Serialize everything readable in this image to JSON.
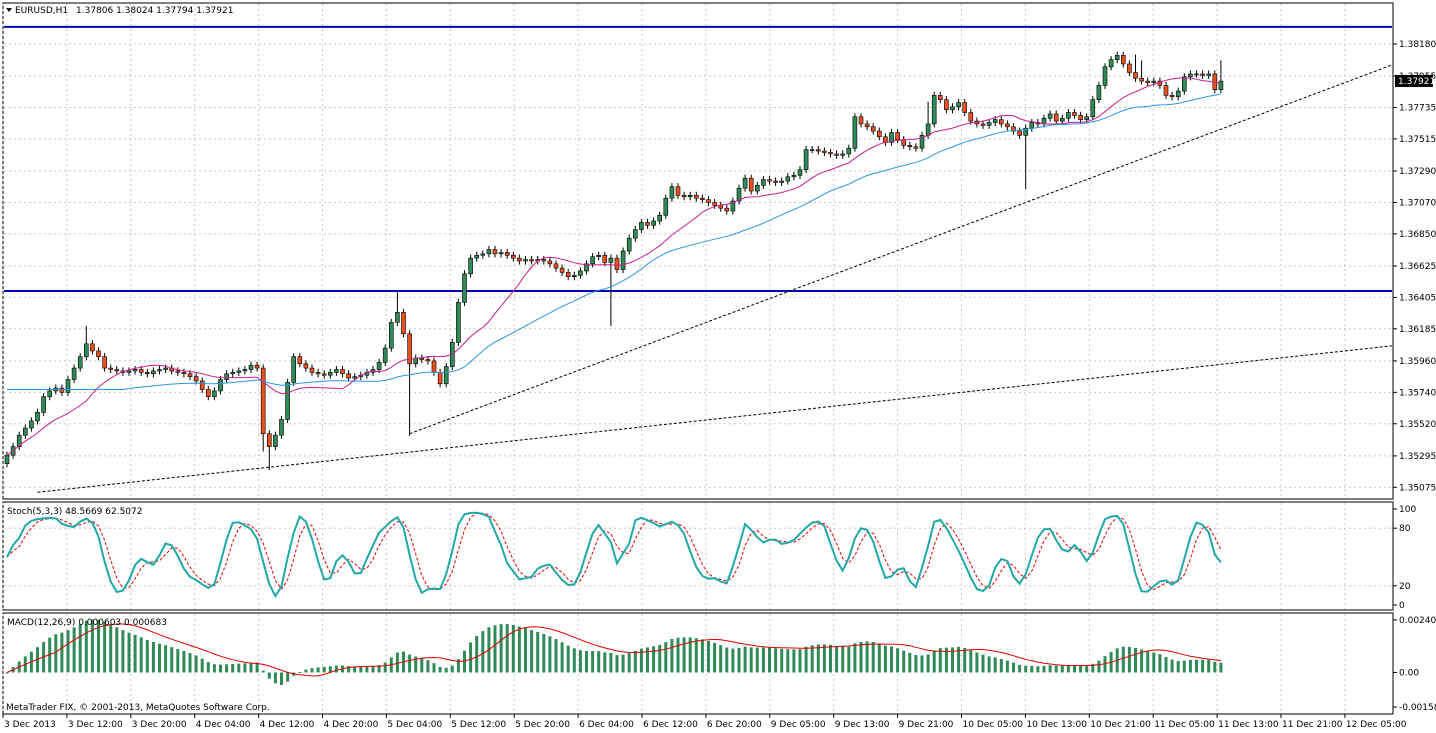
{
  "header": {
    "symbol": "EURUSD,H1",
    "ohlc": "1.37806 1.38024 1.37794 1.37921"
  },
  "watermark": "MetaTrader FIX, © 2001-2013, MetaQuotes Software Corp.",
  "colors": {
    "bull": "#2e8b57",
    "bear": "#e8501e",
    "ma_fast": "#c8208c",
    "ma_slow": "#2f96e0",
    "hline": "#0000b8",
    "stoch_main": "#20a8a8",
    "stoch_signal": "#e00000",
    "macd_hist": "#2e8b57",
    "macd_signal": "#e00000"
  },
  "chart_data": [
    {
      "type": "candlestick",
      "symbol": "EURUSD",
      "timeframe": "H1",
      "last_price": "1.37921",
      "ylim": [
        1.35,
        1.3846
      ],
      "y_ticks": [
        "1.38180",
        "1.37955",
        "1.37735",
        "1.37515",
        "1.37290",
        "1.37070",
        "1.36850",
        "1.36625",
        "1.36405",
        "1.36185",
        "1.35960",
        "1.35740",
        "1.35520",
        "1.35295",
        "1.35075"
      ],
      "y_tick_values": [
        1.3818,
        1.37955,
        1.37735,
        1.37515,
        1.3729,
        1.3707,
        1.3685,
        1.36625,
        1.36405,
        1.36185,
        1.3596,
        1.3574,
        1.3552,
        1.35295,
        1.35075
      ],
      "x_ticks": [
        "3 Dec 2013",
        "3 Dec 12:00",
        "3 Dec 20:00",
        "4 Dec 04:00",
        "4 Dec 12:00",
        "4 Dec 20:00",
        "5 Dec 04:00",
        "5 Dec 12:00",
        "5 Dec 20:00",
        "6 Dec 04:00",
        "6 Dec 12:00",
        "6 Dec 20:00",
        "9 Dec 05:00",
        "9 Dec 13:00",
        "9 Dec 21:00",
        "10 Dec 05:00",
        "10 Dec 13:00",
        "10 Dec 21:00",
        "11 Dec 05:00",
        "11 Dec 13:00",
        "11 Dec 21:00",
        "12 Dec 05:00"
      ],
      "horizontal_lines": [
        1.383,
        1.3645
      ],
      "trendlines": [
        {
          "from": {
            "bar": 5,
            "price": 1.3504
          },
          "to": {
            "bar": 215,
            "price": 1.3601
          }
        },
        {
          "from": {
            "bar": 66,
            "price": 1.3545
          },
          "to": {
            "bar": 215,
            "price": 1.3784
          }
        }
      ],
      "closes": [
        1.353,
        1.3536,
        1.3544,
        1.3549,
        1.3554,
        1.356,
        1.3571,
        1.3575,
        1.3577,
        1.3574,
        1.3583,
        1.3591,
        1.3599,
        1.3608,
        1.3603,
        1.3599,
        1.3591,
        1.359,
        1.3589,
        1.3588,
        1.3589,
        1.359,
        1.3588,
        1.3587,
        1.3589,
        1.359,
        1.3591,
        1.3589,
        1.3588,
        1.3587,
        1.3585,
        1.3582,
        1.3576,
        1.3571,
        1.3575,
        1.3583,
        1.3587,
        1.3588,
        1.3589,
        1.359,
        1.3593,
        1.3591,
        1.3545,
        1.3536,
        1.3544,
        1.3555,
        1.3581,
        1.3599,
        1.3594,
        1.3591,
        1.3588,
        1.3587,
        1.3586,
        1.3588,
        1.359,
        1.3587,
        1.3584,
        1.3585,
        1.3586,
        1.3588,
        1.359,
        1.3595,
        1.3605,
        1.3623,
        1.363,
        1.3615,
        1.3594,
        1.3598,
        1.3597,
        1.3596,
        1.3588,
        1.358,
        1.3592,
        1.3609,
        1.3637,
        1.3657,
        1.3668,
        1.367,
        1.3671,
        1.3674,
        1.3671,
        1.3672,
        1.367,
        1.3668,
        1.3666,
        1.3667,
        1.3666,
        1.3667,
        1.3666,
        1.3664,
        1.3661,
        1.3658,
        1.3655,
        1.3656,
        1.3659,
        1.3664,
        1.3669,
        1.367,
        1.3665,
        1.3668,
        1.366,
        1.3673,
        1.3682,
        1.3688,
        1.3693,
        1.3691,
        1.3694,
        1.3698,
        1.371,
        1.3718,
        1.3712,
        1.3711,
        1.3712,
        1.371,
        1.3709,
        1.3707,
        1.3705,
        1.3703,
        1.3701,
        1.3708,
        1.3717,
        1.3724,
        1.3715,
        1.3719,
        1.3723,
        1.3722,
        1.3721,
        1.3722,
        1.3725,
        1.3726,
        1.373,
        1.3744,
        1.3744,
        1.3743,
        1.3742,
        1.3741,
        1.374,
        1.3741,
        1.3745,
        1.3767,
        1.3762,
        1.376,
        1.3757,
        1.3753,
        1.3749,
        1.3756,
        1.3751,
        1.3747,
        1.3746,
        1.3745,
        1.3754,
        1.3762,
        1.3782,
        1.3779,
        1.3772,
        1.3774,
        1.3777,
        1.377,
        1.3764,
        1.3762,
        1.3761,
        1.3763,
        1.3765,
        1.3762,
        1.376,
        1.3757,
        1.3754,
        1.3759,
        1.3763,
        1.3762,
        1.3766,
        1.3769,
        1.3764,
        1.3766,
        1.377,
        1.3768,
        1.3765,
        1.3767,
        1.3779,
        1.3789,
        1.3802,
        1.3807,
        1.381,
        1.3804,
        1.3798,
        1.3794,
        1.3792,
        1.3791,
        1.3792,
        1.3789,
        1.3782,
        1.3781,
        1.3785,
        1.3795,
        1.3797,
        1.3797,
        1.3796,
        1.3797,
        1.3786,
        1.3792
      ],
      "series": [
        {
          "name": "MA fast",
          "values_from": "derived"
        },
        {
          "name": "MA slow",
          "values_from": "derived"
        }
      ]
    },
    {
      "type": "line",
      "indicator_label": "Stoch(5,3,3) 48.5669 62.5072",
      "ylim": [
        0,
        100
      ],
      "y_ticks": [
        "100",
        "80",
        "20",
        "0"
      ],
      "y_tick_values": [
        100,
        80,
        20,
        0
      ]
    },
    {
      "type": "bar",
      "indicator_label": "MACD(12,26,9) 0.000603 0.000683",
      "ylim": [
        -0.00158,
        0.0024
      ],
      "y_ticks": [
        "0.002405",
        "0.00",
        "-0.00158"
      ],
      "y_tick_values": [
        0.002405,
        0.0,
        -0.00158
      ]
    }
  ]
}
